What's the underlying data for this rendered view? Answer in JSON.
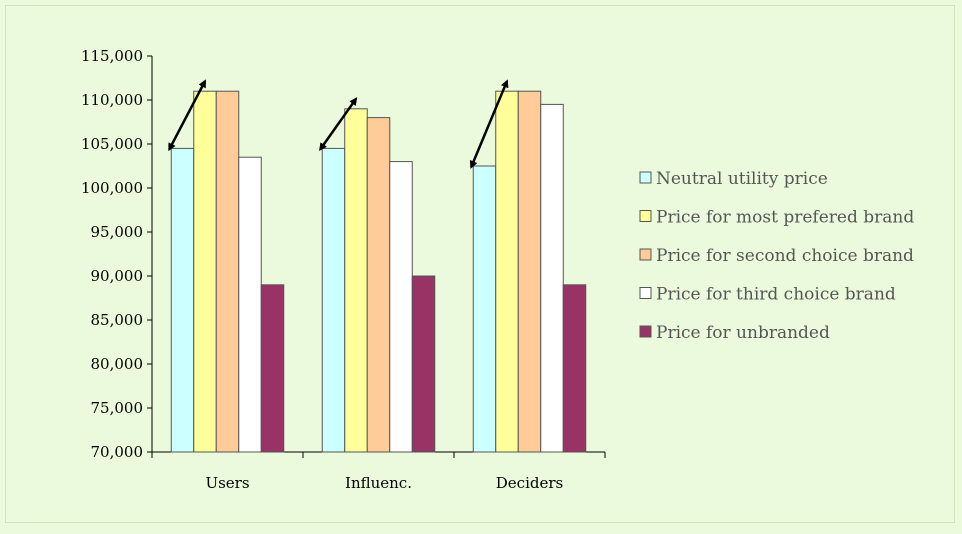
{
  "chart_data": {
    "type": "bar",
    "categories": [
      "Users",
      "Influenc.",
      "Deciders"
    ],
    "series": [
      {
        "name": "Neutral utility price",
        "color": "#ccffff",
        "values": [
          104500,
          104500,
          102500
        ]
      },
      {
        "name": "Price for most prefered brand",
        "color": "#ffff99",
        "values": [
          111000,
          109000,
          111000
        ]
      },
      {
        "name": "Price for second choice brand",
        "color": "#ffcc99",
        "values": [
          111000,
          108000,
          111000
        ]
      },
      {
        "name": "Price for third choice brand",
        "color": "#ffffff",
        "values": [
          103500,
          103000,
          109500
        ]
      },
      {
        "name": "Price for unbranded",
        "color": "#993366",
        "values": [
          89000,
          90000,
          89000
        ]
      }
    ],
    "yticks": [
      "70,000",
      "75,000",
      "80,000",
      "85,000",
      "90,000",
      "95,000",
      "100,000",
      "105,000",
      "110,000",
      "115,000"
    ],
    "ylim": [
      70000,
      115000
    ],
    "title": "",
    "xlabel": "",
    "ylabel": "",
    "grid": false,
    "legend_position": "right",
    "annotations": "double-headed arrows from the neutral price bar to the most preferred brand bar in each group",
    "background": "#ebfadc"
  }
}
